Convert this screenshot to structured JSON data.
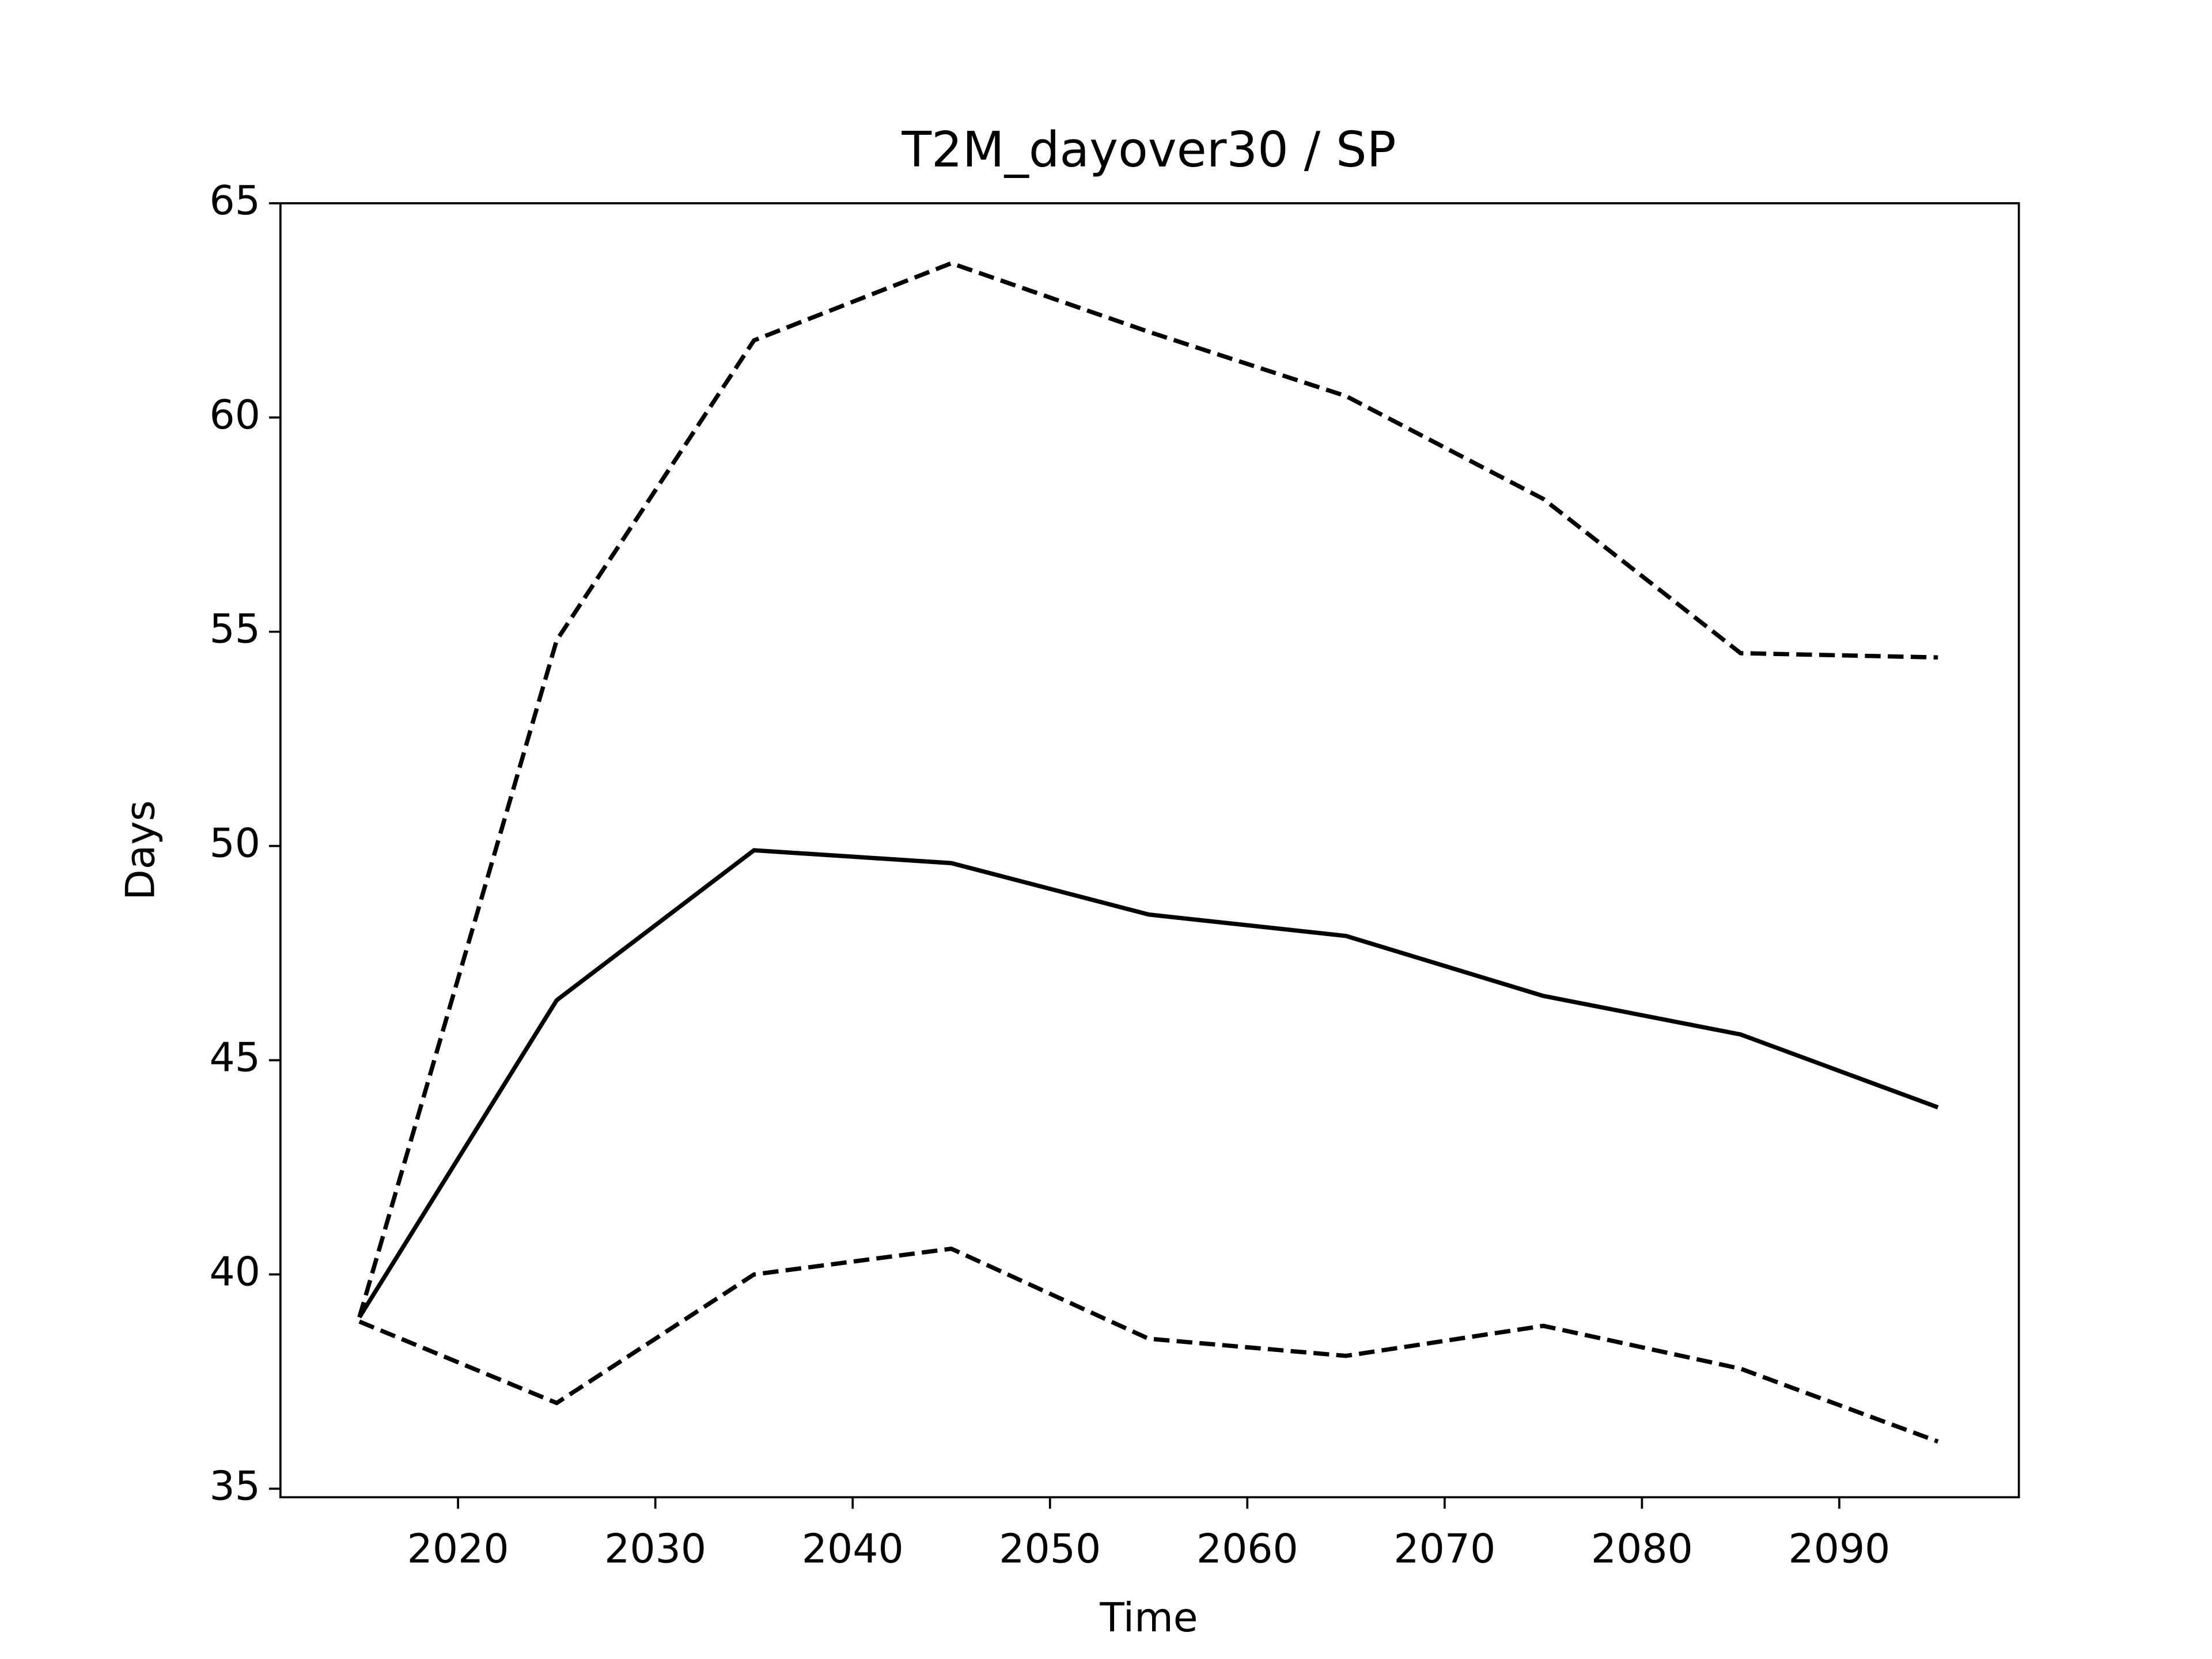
{
  "chart_data": {
    "type": "line",
    "title": "T2M_dayover30 / SP",
    "x_label": "Time",
    "y_label": "Days",
    "x": [
      2015,
      2025,
      2035,
      2045,
      2055,
      2065,
      2075,
      2085,
      2095
    ],
    "series": [
      {
        "color": "#000000",
        "linestyle": "solid",
        "values": [
          39.0,
          46.4,
          49.9,
          49.6,
          48.4,
          47.9,
          46.5,
          45.6,
          43.9
        ]
      },
      {
        "color": "#000000",
        "linestyle": "dashed",
        "values": [
          39.0,
          54.8,
          61.8,
          63.6,
          62.0,
          60.5,
          58.1,
          54.5,
          54.4
        ]
      },
      {
        "color": "#000000",
        "linestyle": "dashed",
        "values": [
          38.9,
          37.0,
          40.0,
          40.6,
          38.5,
          38.1,
          38.8,
          37.8,
          36.1
        ]
      }
    ],
    "xlim": [
      2011,
      2099.1
    ],
    "ylim": [
      34.8,
      65
    ],
    "xticks": [
      2020,
      2030,
      2040,
      2050,
      2060,
      2070,
      2080,
      2090
    ],
    "yticks": [
      35,
      40,
      45,
      50,
      55,
      60,
      65
    ],
    "grid": false
  }
}
